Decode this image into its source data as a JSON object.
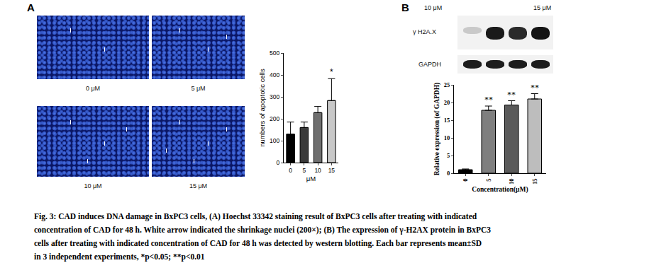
{
  "panel_A": {
    "label": "A",
    "images": [
      "0 μM",
      "5 μM",
      "10 μM",
      "15 μM"
    ]
  },
  "panel_B": {
    "label": "B",
    "blot_lane_labels": [
      "10 μM",
      "15 μM"
    ],
    "blot_rows": [
      "γ H2A.X",
      "GAPDH"
    ]
  },
  "chart_data": [
    {
      "type": "bar",
      "categories": [
        "0",
        "5",
        "10",
        "15"
      ],
      "values": [
        130,
        160,
        228,
        283
      ],
      "errors": [
        55,
        25,
        28,
        100
      ],
      "colors": [
        "#000000",
        "#3a3a3a",
        "#6f6f6f",
        "#c8c8c8"
      ],
      "x_label": "μM",
      "y_label": "numbers of apoptotic cells",
      "ylim": [
        0,
        500
      ],
      "yticks": [
        0,
        100,
        200,
        300,
        400,
        500
      ],
      "grid": false,
      "annotations": [
        {
          "category": "15",
          "text": "*"
        }
      ]
    },
    {
      "type": "bar",
      "categories": [
        "0",
        "5",
        "10",
        "15"
      ],
      "values": [
        1,
        17.8,
        19.3,
        21
      ],
      "errors": [
        0.2,
        1.2,
        1.2,
        1.5
      ],
      "colors": [
        "#000000",
        "#7f7f7f",
        "#5a5a5a",
        "#bdbdbd"
      ],
      "x_label": "Concentration(μM)",
      "y_label": "Relative expression (of GAPDH)",
      "ylim": [
        0,
        25
      ],
      "yticks": [
        0,
        5,
        10,
        15,
        20,
        25
      ],
      "grid": false,
      "annotations": [
        {
          "category": "5",
          "text": "**"
        },
        {
          "category": "10",
          "text": "**"
        },
        {
          "category": "15",
          "text": "**"
        }
      ]
    }
  ],
  "caption": [
    "Fig. 3: CAD induces DNA damage in BxPC3 cells, (A) Hoechst 33342 staining result of BxPC3 cells after treating with indicated",
    "concentration of CAD for 48 h. White arrow indicated the shrinkage nuclei (200×); (B) The expression of γ-H2AX protein in BxPC3",
    "cells after treating with indicated concentration of CAD for 48 h was detected by western blotting. Each bar represents mean±SD",
    "in 3 independent experiments, *p<0.05; **p<0.01"
  ]
}
